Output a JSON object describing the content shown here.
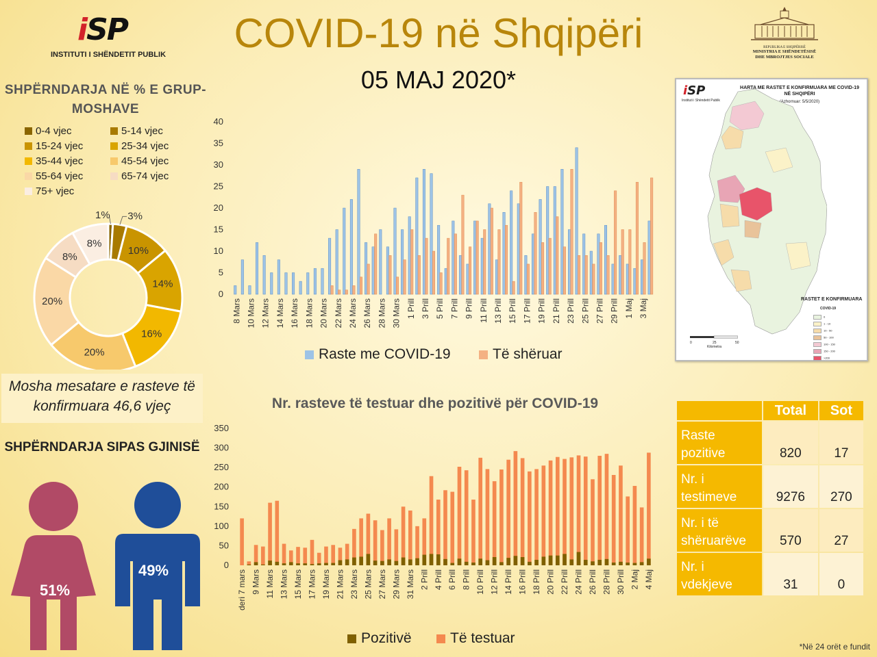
{
  "header": {
    "logo_text": "iSP",
    "institute": "INSTITUTI I SHËNDETIT PUBLIK",
    "title": "COVID-19 në Shqipëri",
    "date": "05 MAJ 2020*",
    "ministry_republic": "REPUBLIKA E SHQIPËRISË",
    "ministry_line1": "MINISTRIA E SHËNDETËSISË",
    "ministry_line2": "DHE MBROJTJES SOCIALE"
  },
  "age": {
    "title": "SHPËRNDARJA NË % E GRUP-MOSHAVE",
    "mean": "Mosha mesatare e rasteve të konfirmuara 46,6 vjeç"
  },
  "gender": {
    "title": "SHPËRNDARJA SIPAS GJINISË",
    "female": "51%",
    "male": "49%",
    "female_color": "#b14a66",
    "male_color": "#1f4e99"
  },
  "map": {
    "title": "HARTA ME RASTET E KONFIRMUARA ME COVID-19 NË SHQIPËRI",
    "subtitle": "(Azhornuar: 5/5/2020)",
    "legend_title": "RASTET E KONFIRMUARA",
    "legend_sub": "COVID-19",
    "legend_items": [
      "0",
      "1 - 10",
      "10 - 50",
      "50 - 100",
      "100 - 150",
      "150 - 200",
      ">200"
    ],
    "legend_colors": [
      "#e9f3df",
      "#fbf2c8",
      "#f6dcaa",
      "#e9c39a",
      "#f3c9d3",
      "#e8a5b5",
      "#e8546a"
    ],
    "scale_label": "Kilometra",
    "scale_ticks": [
      "0",
      "25",
      "50"
    ],
    "logo_sub": "Instituti i Shëndetit Publik"
  },
  "stats": {
    "headers": [
      "",
      "Total",
      "Sot"
    ],
    "rows": [
      {
        "label": "Raste pozitive",
        "total": "820",
        "today": "17"
      },
      {
        "label": "Nr. i testimeve",
        "total": "9276",
        "today": "270"
      },
      {
        "label": "Nr. i të shëruarëve",
        "total": "570",
        "today": "27"
      },
      {
        "label": "Nr. i vdekjeve",
        "total": "31",
        "today": "0"
      }
    ]
  },
  "footnote": "*Në 24 orët e fundit",
  "chart_data": [
    {
      "type": "pie",
      "subtype": "donut",
      "title": "SHPËRNDARJA NË % E GRUP-MOSHAVE",
      "categories": [
        "0-4 vjec",
        "5-14 vjec",
        "15-24 vjec",
        "25-34 vjec",
        "35-44 vjec",
        "45-54 vjec",
        "55-64 vjec",
        "65-74 vjec",
        "75+ vjec"
      ],
      "values": [
        1,
        3,
        10,
        14,
        16,
        20,
        20,
        8,
        8
      ],
      "labels": [
        "1%",
        "3%",
        "10%",
        "14%",
        "16%",
        "20%",
        "20%",
        "8%",
        "8%"
      ],
      "colors": [
        "#8a6500",
        "#a87a00",
        "#c99400",
        "#d9a400",
        "#f2b800",
        "#f7c96c",
        "#fad8a6",
        "#f6dcc3",
        "#fbeee2"
      ]
    },
    {
      "type": "bar",
      "yticks": [
        "0",
        "5",
        "10",
        "15",
        "20",
        "25",
        "30",
        "35",
        "40"
      ],
      "ylim": [
        0,
        40
      ],
      "x_labels": [
        "8 Mars",
        "10 Mars",
        "12 Mars",
        "14 Mars",
        "16 Mars",
        "18 Mars",
        "20 Mars",
        "22 Mars",
        "24 Mars",
        "26 Mars",
        "28 Mars",
        "30 Mars",
        "1 Prill",
        "3 Prill",
        "5 Prill",
        "7 Prill",
        "9 Prill",
        "11 Prill",
        "13 Prill",
        "15 Prill",
        "17 Prill",
        "19 Prill",
        "21 Prill",
        "23 Prill",
        "25 Prill",
        "27 Prill",
        "29 Prill",
        "1 Maj",
        "3 Maj"
      ],
      "series": [
        {
          "name": "Raste me COVID-19",
          "color": "#9dc3e6",
          "values": [
            2,
            8,
            2,
            12,
            9,
            5,
            8,
            5,
            5,
            3,
            5,
            6,
            6,
            13,
            15,
            20,
            22,
            29,
            12,
            11,
            15,
            11,
            20,
            15,
            18,
            27,
            29,
            28,
            16,
            6,
            17,
            9,
            7,
            17,
            13,
            21,
            8,
            19,
            24,
            21,
            9,
            14,
            22,
            25,
            25,
            29,
            15,
            34,
            14,
            10,
            14,
            16,
            7,
            9,
            7,
            6,
            8,
            17
          ]
        },
        {
          "name": "Të shëruar",
          "color": "#f4b183",
          "values": [
            0,
            0,
            0,
            0,
            0,
            0,
            0,
            0,
            0,
            0,
            0,
            0,
            0,
            2,
            1,
            1,
            2,
            4,
            7,
            14,
            0,
            9,
            4,
            8,
            15,
            9,
            13,
            10,
            5,
            13,
            14,
            23,
            11,
            17,
            15,
            20,
            15,
            16,
            3,
            26,
            7,
            19,
            12,
            13,
            18,
            11,
            29,
            9,
            9,
            7,
            12,
            9,
            24,
            15,
            15,
            26,
            12,
            27
          ]
        }
      ]
    },
    {
      "type": "bar",
      "subtype": "stacked",
      "title": "Nr. rasteve të testuar dhe pozitivë për COVID-19",
      "yticks": [
        "0",
        "50",
        "100",
        "150",
        "200",
        "250",
        "300",
        "350"
      ],
      "ylim": [
        0,
        350
      ],
      "x_labels": [
        "deri 7 mars",
        "9 Mars",
        "11 Mars",
        "13 Mars",
        "15 Mars",
        "17 Mars",
        "19 Mars",
        "21 Mars",
        "23 Mars",
        "25 Mars",
        "27 Mars",
        "29 Mars",
        "31 Mars",
        "2 Prill",
        "4 Prill",
        "6 Prill",
        "8 Prill",
        "10 Prill",
        "12 Prill",
        "14 Prill",
        "16 Prill",
        "18 Prill",
        "20 Prill",
        "22 Prill",
        "24 Prill",
        "26 Prill",
        "28 Prill",
        "30 Prill",
        "2 Maj",
        "4 Maj"
      ],
      "series": [
        {
          "name": "Pozitivë",
          "color": "#7f6000",
          "values": [
            0,
            2,
            8,
            2,
            12,
            9,
            5,
            8,
            5,
            5,
            3,
            5,
            6,
            6,
            13,
            15,
            20,
            22,
            29,
            12,
            11,
            15,
            11,
            20,
            15,
            18,
            27,
            29,
            28,
            16,
            6,
            17,
            9,
            7,
            17,
            13,
            21,
            8,
            19,
            24,
            21,
            9,
            14,
            22,
            25,
            25,
            29,
            15,
            34,
            14,
            10,
            14,
            16,
            7,
            9,
            7,
            6,
            8,
            17
          ]
        },
        {
          "name": "Të testuar",
          "color": "#f4894f",
          "values": [
            120,
            10,
            52,
            48,
            160,
            165,
            55,
            38,
            47,
            45,
            65,
            32,
            48,
            52,
            45,
            55,
            93,
            120,
            132,
            115,
            90,
            120,
            92,
            150,
            140,
            100,
            120,
            228,
            168,
            192,
            188,
            252,
            243,
            168,
            275,
            246,
            215,
            245,
            270,
            292,
            274,
            240,
            246,
            255,
            268,
            277,
            272,
            276,
            281,
            278,
            220,
            280,
            285,
            231,
            255,
            176,
            203,
            148,
            288
          ]
        }
      ]
    }
  ]
}
